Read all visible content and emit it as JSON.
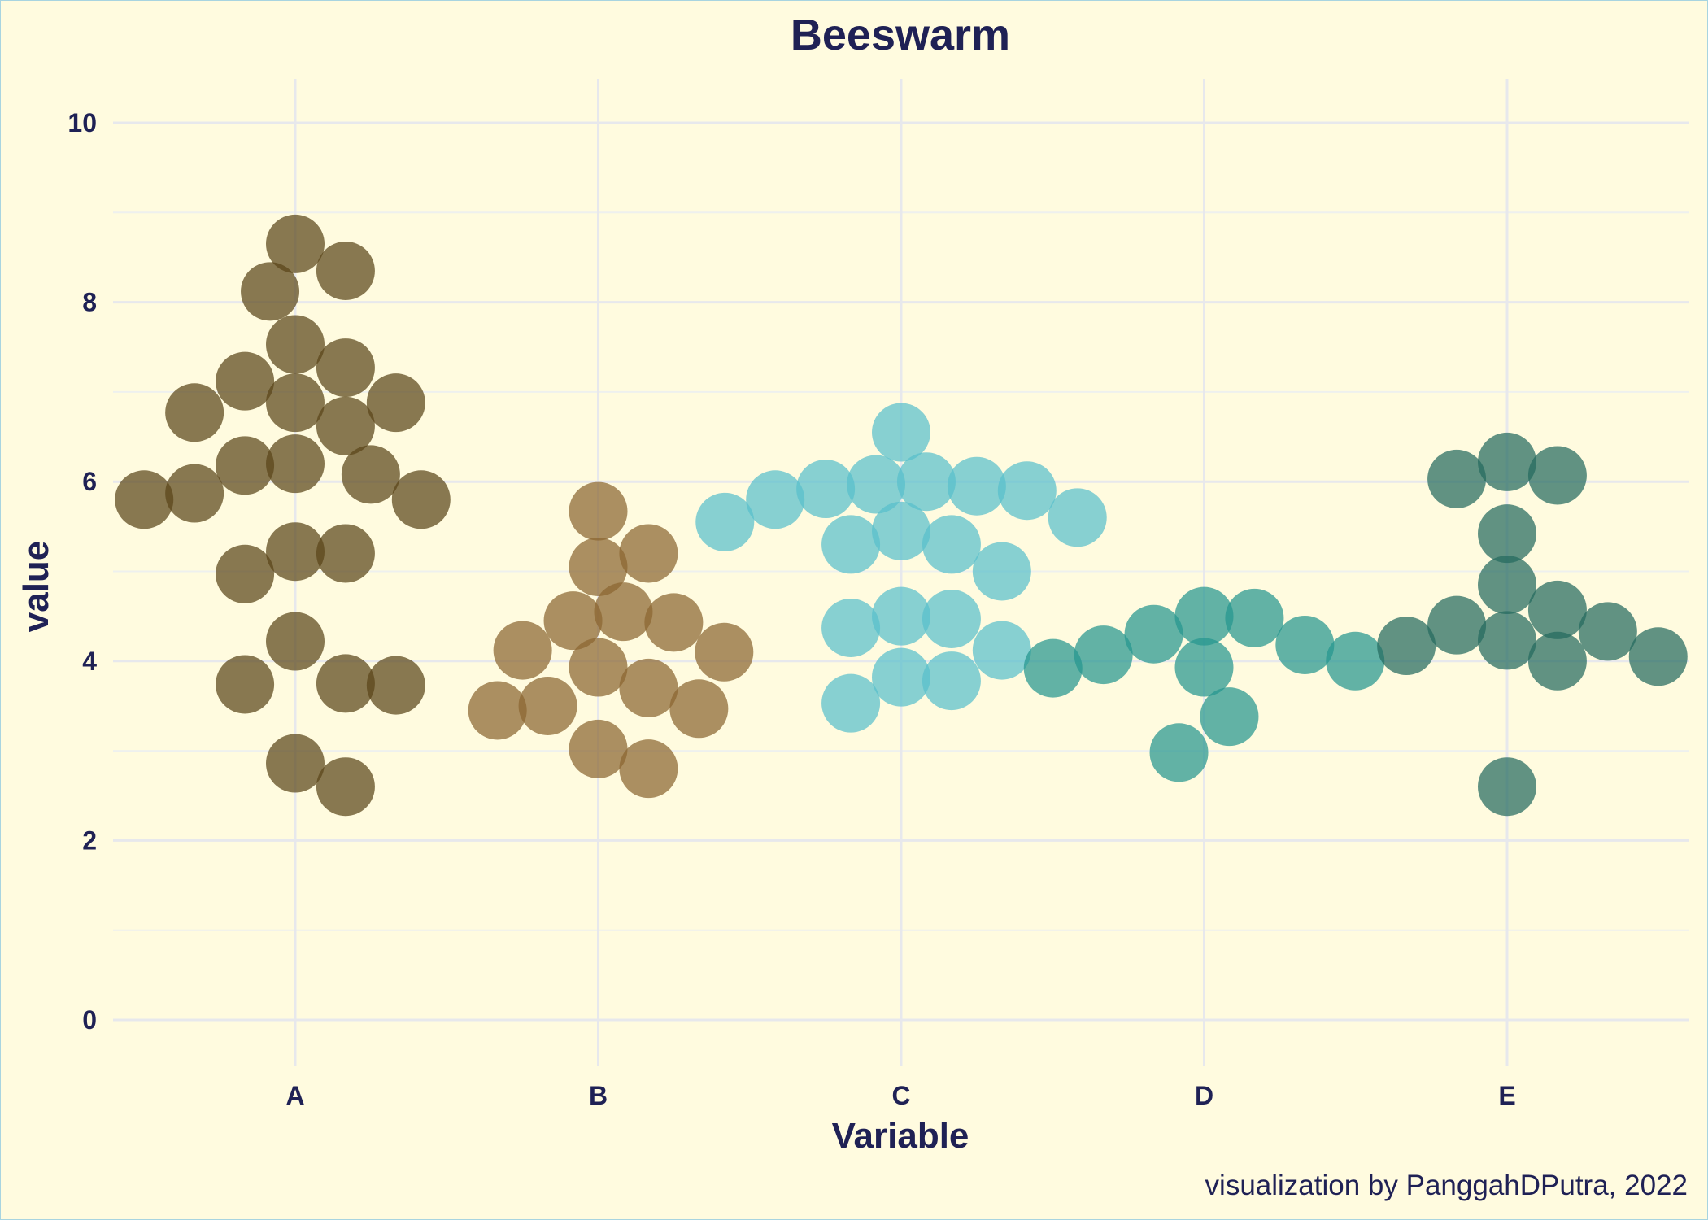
{
  "chart_data": {
    "type": "scatter",
    "subtype": "beeswarm",
    "title": "Beeswarm",
    "xlabel": "Variable",
    "ylabel": "value",
    "caption": "visualization by PanggahDPutra, 2022",
    "ylim": [
      0,
      10
    ],
    "yticks": [
      0,
      2,
      4,
      6,
      8,
      10
    ],
    "grid": true,
    "legend": "none",
    "categories": [
      "A",
      "B",
      "C",
      "D",
      "E"
    ],
    "series": [
      {
        "category": "A",
        "color": "#5a4519",
        "values": [
          8.65,
          8.35,
          8.12,
          7.53,
          7.27,
          7.12,
          6.88,
          6.88,
          6.77,
          6.62,
          6.2,
          6.18,
          6.08,
          5.87,
          5.8,
          5.8,
          5.22,
          5.2,
          4.97,
          4.22,
          3.75,
          3.74,
          3.73,
          2.86,
          2.6
        ]
      },
      {
        "category": "B",
        "color": "#8b6530",
        "values": [
          5.67,
          5.2,
          5.05,
          4.55,
          4.45,
          4.43,
          4.12,
          4.1,
          3.93,
          3.7,
          3.5,
          3.47,
          3.45,
          3.02,
          2.8
        ]
      },
      {
        "category": "C",
        "color": "#59bfcc",
        "values": [
          6.55,
          6.0,
          5.97,
          5.95,
          5.92,
          5.9,
          5.8,
          5.6,
          5.55,
          5.45,
          5.3,
          5.3,
          5.0,
          4.5,
          4.47,
          4.37,
          4.12,
          3.82,
          3.78,
          3.53
        ]
      },
      {
        "category": "D",
        "color": "#26958f",
        "values": [
          4.5,
          4.48,
          4.3,
          4.18,
          4.07,
          4.0,
          3.93,
          3.92,
          3.38,
          2.98
        ]
      },
      {
        "category": "E",
        "color": "#246a5e",
        "values": [
          6.22,
          6.07,
          6.03,
          5.42,
          4.85,
          4.57,
          4.4,
          4.33,
          4.23,
          4.17,
          4.05,
          4.0,
          2.6
        ]
      }
    ]
  }
}
